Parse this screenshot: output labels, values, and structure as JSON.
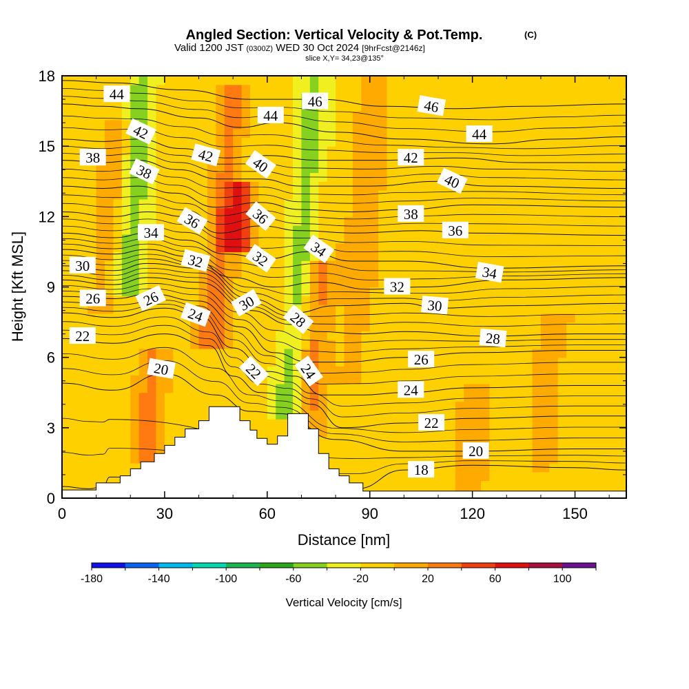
{
  "chart_data": {
    "type": "heatmap",
    "title": "Angled Section: Vertical Velocity & Pot.Temp.",
    "title_unit": "(C)",
    "subtitle_main": "Valid 1200 JST",
    "subtitle_zulu": "(0300Z)",
    "subtitle_date": "WED 30 Oct 2024",
    "subtitle_fcst": "[9hrFcst@2146z]",
    "slice_label": "slice X,Y= 34,23@135°",
    "xlabel": "Distance [nm]",
    "ylabel": "Height [Kft MSL]",
    "xlim": [
      0,
      165
    ],
    "ylim": [
      0,
      18
    ],
    "x_ticks": [
      "0",
      "30",
      "60",
      "90",
      "120",
      "150"
    ],
    "x_tick_values": [
      0,
      30,
      60,
      90,
      120,
      150
    ],
    "y_ticks": [
      "0",
      "3",
      "6",
      "9",
      "12",
      "15",
      "18"
    ],
    "y_tick_values": [
      0,
      3,
      6,
      9,
      12,
      15,
      18
    ],
    "colorbar": {
      "label": "Vertical Velocity [cm/s]",
      "min": -180,
      "max": 120,
      "step": 20,
      "tick_labels": [
        "-180",
        "-140",
        "-100",
        "-60",
        "-20",
        "20",
        "60",
        "100"
      ],
      "tick_values": [
        -180,
        -140,
        -100,
        -60,
        -20,
        20,
        60,
        100
      ],
      "colors": [
        "#1010e8",
        "#0a64f0",
        "#00b8f0",
        "#00d8b0",
        "#1cb450",
        "#2ca818",
        "#86d020",
        "#f0f020",
        "#ffd000",
        "#ffaa00",
        "#ff7a10",
        "#f04010",
        "#e01010",
        "#a81040",
        "#6a1090"
      ]
    },
    "background_value": -10,
    "velocity_features": [
      {
        "x": 21,
        "y0": 8.8,
        "y1": 18,
        "value": -55
      },
      {
        "x": 52,
        "y0": 10.5,
        "y1": 13.5,
        "value": 55
      },
      {
        "x": 47,
        "y0": 6.5,
        "y1": 17.5,
        "value": 30
      },
      {
        "x": 70,
        "y0": 3.5,
        "y1": 18,
        "value": -45
      },
      {
        "x": 74,
        "y0": 2.5,
        "y1": 10,
        "value": 25
      },
      {
        "x": 26,
        "y0": 1.5,
        "y1": 6.5,
        "value": 25
      },
      {
        "x": 15,
        "y0": 8,
        "y1": 16,
        "value": 15
      },
      {
        "x": 88,
        "y0": 5,
        "y1": 18,
        "value": 12
      },
      {
        "x": 142,
        "y0": 1,
        "y1": 8,
        "value": 12
      },
      {
        "x": 120,
        "y0": 0,
        "y1": 5,
        "value": 12
      }
    ],
    "isentropes": [
      {
        "theta": 18,
        "points": [
          [
            0,
            0.5
          ],
          [
            8,
            0.4
          ],
          [
            12,
            0.5
          ],
          [
            14,
            0.9
          ],
          [
            86,
            0.4
          ],
          [
            100,
            1.2
          ],
          [
            120,
            1.4
          ],
          [
            150,
            1.3
          ],
          [
            165,
            1.2
          ]
        ]
      },
      {
        "theta": 20,
        "points": [
          [
            0,
            4.9
          ],
          [
            15,
            4.6
          ],
          [
            30,
            5.3
          ],
          [
            45,
            4.4
          ],
          [
            55,
            3.7
          ],
          [
            64,
            3.6
          ],
          [
            80,
            2.5
          ],
          [
            100,
            2.0
          ],
          [
            120,
            2.0
          ],
          [
            150,
            2.1
          ],
          [
            165,
            2.1
          ]
        ]
      },
      {
        "theta": 22,
        "points": [
          [
            0,
            6.8
          ],
          [
            15,
            6.6
          ],
          [
            30,
            7.0
          ],
          [
            43,
            6.5
          ],
          [
            50,
            5.2
          ],
          [
            58,
            4.5
          ],
          [
            66,
            4.4
          ],
          [
            73,
            4.0
          ],
          [
            82,
            3.0
          ],
          [
            100,
            3.2
          ],
          [
            120,
            3.4
          ],
          [
            150,
            3.5
          ],
          [
            165,
            3.5
          ]
        ]
      },
      {
        "theta": 24,
        "points": [
          [
            0,
            7.9
          ],
          [
            15,
            7.7
          ],
          [
            30,
            8.1
          ],
          [
            40,
            7.8
          ],
          [
            50,
            6.4
          ],
          [
            60,
            5.4
          ],
          [
            68,
            5.2
          ],
          [
            76,
            4.4
          ],
          [
            88,
            4.4
          ],
          [
            100,
            4.5
          ],
          [
            120,
            4.7
          ],
          [
            150,
            4.8
          ],
          [
            165,
            4.8
          ]
        ]
      },
      {
        "theta": 26,
        "points": [
          [
            0,
            8.6
          ],
          [
            15,
            8.5
          ],
          [
            26,
            8.7
          ],
          [
            40,
            8.4
          ],
          [
            52,
            7.3
          ],
          [
            62,
            6.2
          ],
          [
            72,
            5.8
          ],
          [
            82,
            5.8
          ],
          [
            100,
            6.0
          ],
          [
            120,
            6.2
          ],
          [
            150,
            6.3
          ],
          [
            165,
            6.3
          ]
        ]
      },
      {
        "theta": 28,
        "points": [
          [
            0,
            9.3
          ],
          [
            15,
            9.1
          ],
          [
            25,
            9.4
          ],
          [
            40,
            9.2
          ],
          [
            55,
            8.0
          ],
          [
            67,
            7.4
          ],
          [
            75,
            7.1
          ],
          [
            88,
            7.0
          ],
          [
            100,
            7.1
          ],
          [
            125,
            6.9
          ],
          [
            150,
            7.0
          ],
          [
            165,
            7.0
          ]
        ]
      },
      {
        "theta": 30,
        "points": [
          [
            0,
            9.9
          ],
          [
            15,
            9.7
          ],
          [
            25,
            10.0
          ],
          [
            40,
            9.8
          ],
          [
            55,
            8.5
          ],
          [
            68,
            7.9
          ],
          [
            80,
            8.2
          ],
          [
            100,
            8.3
          ],
          [
            110,
            8.1
          ],
          [
            130,
            8.2
          ],
          [
            165,
            8.3
          ]
        ]
      },
      {
        "theta": 32,
        "points": [
          [
            0,
            10.6
          ],
          [
            15,
            10.4
          ],
          [
            25,
            10.6
          ],
          [
            37,
            10.3
          ],
          [
            50,
            9.4
          ],
          [
            62,
            9.0
          ],
          [
            75,
            9.2
          ],
          [
            90,
            8.9
          ],
          [
            105,
            9.0
          ],
          [
            130,
            9.3
          ],
          [
            165,
            9.4
          ]
        ]
      },
      {
        "theta": 34,
        "points": [
          [
            0,
            11.3
          ],
          [
            15,
            11.1
          ],
          [
            25,
            11.3
          ],
          [
            36,
            11.0
          ],
          [
            48,
            10.4
          ],
          [
            60,
            10.2
          ],
          [
            72,
            10.5
          ],
          [
            85,
            10.1
          ],
          [
            100,
            10.1
          ],
          [
            125,
            9.8
          ],
          [
            165,
            9.9
          ]
        ]
      },
      {
        "theta": 36,
        "points": [
          [
            0,
            12.2
          ],
          [
            15,
            12.0
          ],
          [
            25,
            12.2
          ],
          [
            36,
            12.0
          ],
          [
            46,
            11.3
          ],
          [
            58,
            11.6
          ],
          [
            70,
            11.4
          ],
          [
            85,
            11.3
          ],
          [
            105,
            11.4
          ],
          [
            120,
            11.3
          ],
          [
            165,
            11.2
          ]
        ]
      },
      {
        "theta": 38,
        "points": [
          [
            0,
            13.3
          ],
          [
            12,
            13.2
          ],
          [
            22,
            13.3
          ],
          [
            33,
            13.0
          ],
          [
            45,
            12.4
          ],
          [
            58,
            12.6
          ],
          [
            70,
            12.3
          ],
          [
            85,
            12.2
          ],
          [
            100,
            12.3
          ],
          [
            120,
            12.5
          ],
          [
            165,
            12.4
          ]
        ]
      },
      {
        "theta": 40,
        "points": [
          [
            0,
            14.4
          ],
          [
            12,
            14.3
          ],
          [
            22,
            14.4
          ],
          [
            34,
            14.0
          ],
          [
            46,
            13.6
          ],
          [
            58,
            13.6
          ],
          [
            70,
            13.3
          ],
          [
            90,
            13.3
          ],
          [
            110,
            13.5
          ],
          [
            125,
            13.3
          ],
          [
            165,
            13.2
          ]
        ]
      },
      {
        "theta": 42,
        "points": [
          [
            0,
            15.3
          ],
          [
            12,
            15.2
          ],
          [
            22,
            15.3
          ],
          [
            35,
            14.9
          ],
          [
            48,
            14.5
          ],
          [
            60,
            14.6
          ],
          [
            75,
            14.4
          ],
          [
            95,
            14.4
          ],
          [
            115,
            14.5
          ],
          [
            135,
            14.3
          ],
          [
            165,
            14.3
          ]
        ]
      },
      {
        "theta": 44,
        "points": [
          [
            0,
            16.8
          ],
          [
            12,
            16.7
          ],
          [
            22,
            16.6
          ],
          [
            40,
            16.2
          ],
          [
            52,
            15.8
          ],
          [
            63,
            16.0
          ],
          [
            80,
            15.6
          ],
          [
            100,
            15.3
          ],
          [
            125,
            15.1
          ],
          [
            145,
            15.3
          ],
          [
            165,
            15.4
          ]
        ]
      },
      {
        "theta": 46,
        "points": [
          [
            0,
            17.8
          ],
          [
            15,
            17.7
          ],
          [
            35,
            17.4
          ],
          [
            55,
            17.0
          ],
          [
            75,
            17.0
          ],
          [
            95,
            16.7
          ],
          [
            115,
            16.6
          ],
          [
            135,
            16.7
          ],
          [
            165,
            16.8
          ]
        ]
      }
    ],
    "contour_labels": [
      {
        "text": "44",
        "x": 16,
        "y": 17.2,
        "angle": 0
      },
      {
        "text": "42",
        "x": 23,
        "y": 15.6,
        "angle": 25
      },
      {
        "text": "38",
        "x": 9,
        "y": 14.5,
        "angle": 0
      },
      {
        "text": "38",
        "x": 24,
        "y": 13.9,
        "angle": 25
      },
      {
        "text": "34",
        "x": 26,
        "y": 11.3,
        "angle": 0
      },
      {
        "text": "30",
        "x": 6,
        "y": 9.9,
        "angle": 0
      },
      {
        "text": "26",
        "x": 9,
        "y": 8.5,
        "angle": 0
      },
      {
        "text": "26",
        "x": 26,
        "y": 8.5,
        "angle": -25
      },
      {
        "text": "22",
        "x": 6,
        "y": 6.9,
        "angle": 0
      },
      {
        "text": "20",
        "x": 29,
        "y": 5.5,
        "angle": 10
      },
      {
        "text": "42",
        "x": 42,
        "y": 14.6,
        "angle": 15
      },
      {
        "text": "36",
        "x": 38,
        "y": 11.8,
        "angle": 30
      },
      {
        "text": "32",
        "x": 39,
        "y": 10.1,
        "angle": 15
      },
      {
        "text": "24",
        "x": 39,
        "y": 7.8,
        "angle": 20
      },
      {
        "text": "40",
        "x": 58,
        "y": 14.2,
        "angle": 35
      },
      {
        "text": "44",
        "x": 61,
        "y": 16.3,
        "angle": 0
      },
      {
        "text": "36",
        "x": 58,
        "y": 12.0,
        "angle": 40
      },
      {
        "text": "32",
        "x": 58,
        "y": 10.2,
        "angle": 35
      },
      {
        "text": "30",
        "x": 54,
        "y": 8.3,
        "angle": -30
      },
      {
        "text": "22",
        "x": 56,
        "y": 5.4,
        "angle": 45
      },
      {
        "text": "46",
        "x": 74,
        "y": 16.9,
        "angle": 0
      },
      {
        "text": "34",
        "x": 75,
        "y": 10.6,
        "angle": 35
      },
      {
        "text": "28",
        "x": 69,
        "y": 7.6,
        "angle": 40
      },
      {
        "text": "24",
        "x": 72,
        "y": 5.4,
        "angle": 55
      },
      {
        "text": "46",
        "x": 108,
        "y": 16.7,
        "angle": 10
      },
      {
        "text": "44",
        "x": 122,
        "y": 15.5,
        "angle": 0
      },
      {
        "text": "42",
        "x": 102,
        "y": 14.5,
        "angle": 0
      },
      {
        "text": "40",
        "x": 114,
        "y": 13.5,
        "angle": 25
      },
      {
        "text": "38",
        "x": 102,
        "y": 12.1,
        "angle": 0
      },
      {
        "text": "36",
        "x": 115,
        "y": 11.4,
        "angle": 0
      },
      {
        "text": "34",
        "x": 125,
        "y": 9.6,
        "angle": 10
      },
      {
        "text": "32",
        "x": 98,
        "y": 9.0,
        "angle": 0
      },
      {
        "text": "30",
        "x": 109,
        "y": 8.2,
        "angle": 5
      },
      {
        "text": "28",
        "x": 126,
        "y": 6.8,
        "angle": 5
      },
      {
        "text": "26",
        "x": 105,
        "y": 5.9,
        "angle": 0
      },
      {
        "text": "24",
        "x": 102,
        "y": 4.6,
        "angle": 0
      },
      {
        "text": "22",
        "x": 108,
        "y": 3.2,
        "angle": 0
      },
      {
        "text": "20",
        "x": 121,
        "y": 2.0,
        "angle": 0
      },
      {
        "text": "18",
        "x": 105,
        "y": 1.2,
        "angle": 0
      }
    ],
    "terrain": [
      [
        0,
        0.35
      ],
      [
        10,
        0.35
      ],
      [
        10,
        0.65
      ],
      [
        17,
        0.65
      ],
      [
        17,
        0.95
      ],
      [
        20,
        0.95
      ],
      [
        20,
        1.25
      ],
      [
        23,
        1.25
      ],
      [
        23,
        1.55
      ],
      [
        27,
        1.55
      ],
      [
        27,
        1.9
      ],
      [
        30,
        1.9
      ],
      [
        30,
        2.25
      ],
      [
        33,
        2.25
      ],
      [
        33,
        2.6
      ],
      [
        36,
        2.6
      ],
      [
        36,
        2.95
      ],
      [
        40,
        2.95
      ],
      [
        40,
        3.3
      ],
      [
        43,
        3.3
      ],
      [
        43,
        3.9
      ],
      [
        52,
        3.9
      ],
      [
        52,
        3.3
      ],
      [
        55,
        3.3
      ],
      [
        55,
        2.9
      ],
      [
        57,
        2.9
      ],
      [
        57,
        2.55
      ],
      [
        60,
        2.55
      ],
      [
        60,
        2.3
      ],
      [
        63,
        2.3
      ],
      [
        63,
        2.65
      ],
      [
        66,
        2.65
      ],
      [
        66,
        3.6
      ],
      [
        72,
        3.6
      ],
      [
        72,
        2.95
      ],
      [
        75,
        2.95
      ],
      [
        75,
        1.9
      ],
      [
        78,
        1.9
      ],
      [
        78,
        1.25
      ],
      [
        81,
        1.25
      ],
      [
        81,
        0.95
      ],
      [
        84,
        0.95
      ],
      [
        84,
        0.65
      ],
      [
        88,
        0.65
      ],
      [
        88,
        0.3
      ],
      [
        165,
        0.3
      ]
    ]
  }
}
